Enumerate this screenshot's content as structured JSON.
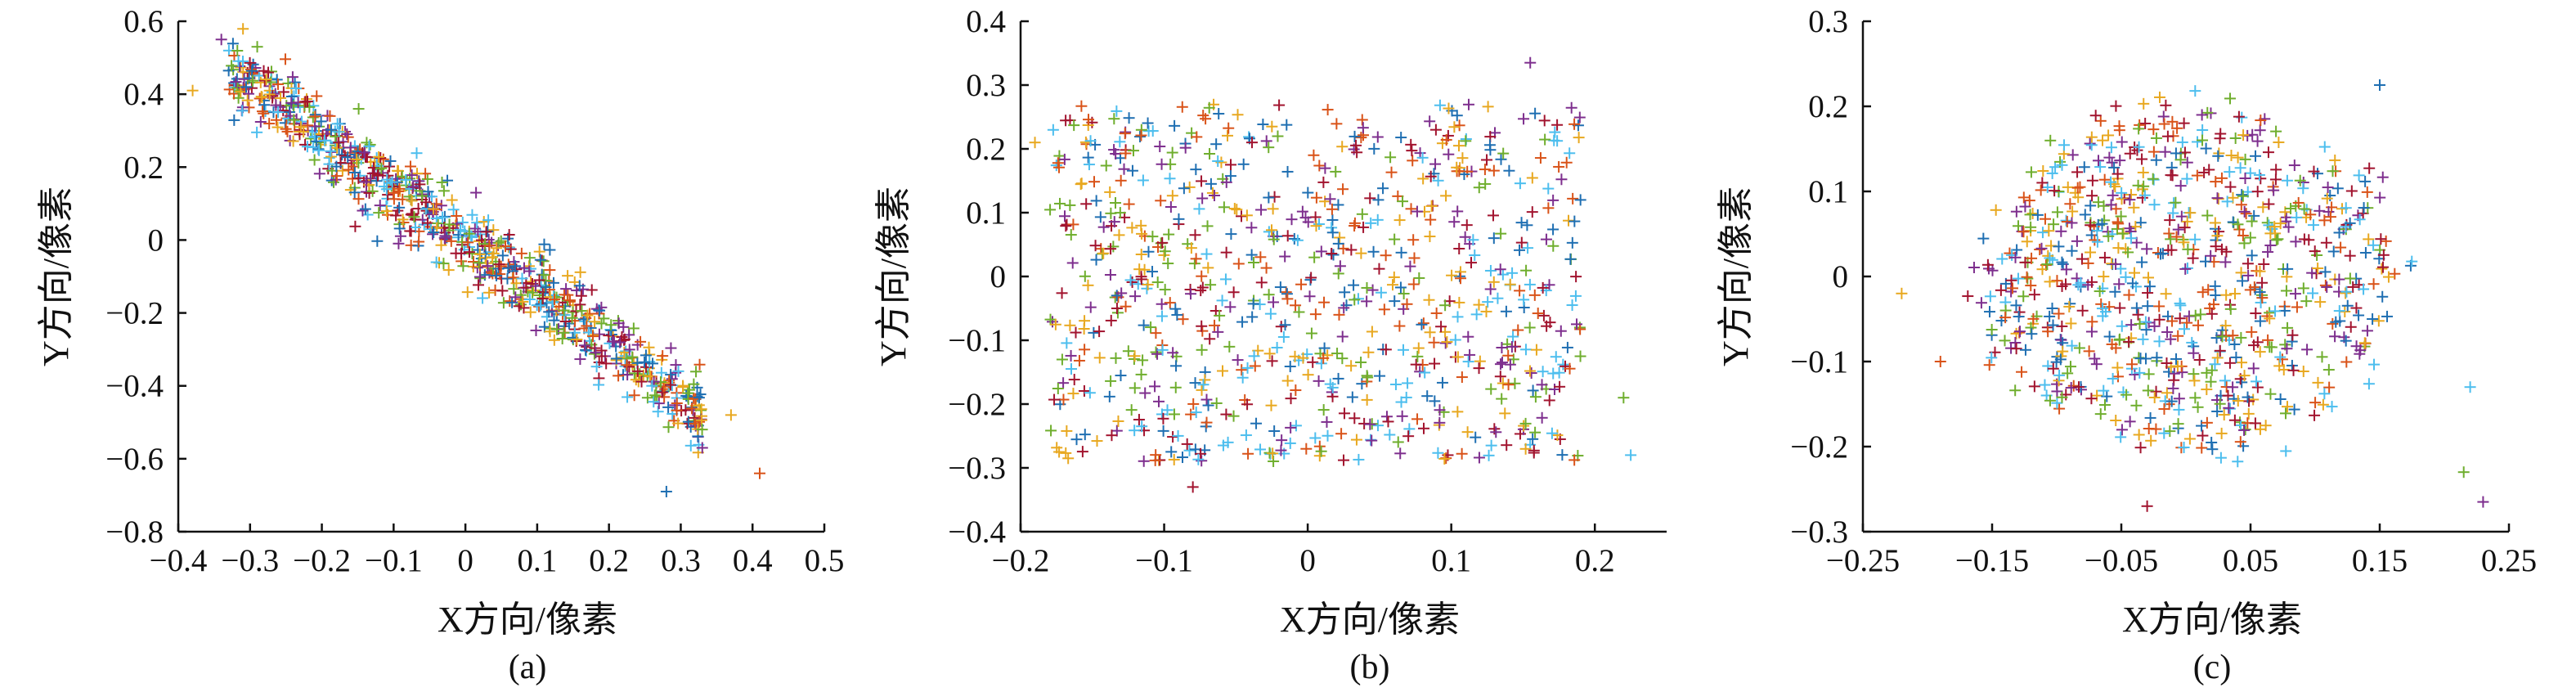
{
  "figure": {
    "panels": [
      {
        "id": "a",
        "label": "(a)",
        "xlabel": "X方向/像素",
        "ylabel": "Y方向/像素"
      },
      {
        "id": "b",
        "label": "(b)",
        "xlabel": "X方向/像素",
        "ylabel": "Y方向/像素"
      },
      {
        "id": "c",
        "label": "(c)",
        "xlabel": "X方向/像素",
        "ylabel": "Y方向/像素"
      }
    ]
  },
  "chart_data": [
    {
      "type": "scatter",
      "marker": "plus",
      "label": "(a)",
      "xlabel": "X方向/像素",
      "ylabel": "Y方向/像素",
      "xlim": [
        -0.4,
        0.5
      ],
      "ylim": [
        -0.8,
        0.6
      ],
      "xticks": [
        -0.4,
        -0.3,
        -0.2,
        -0.1,
        0,
        0.1,
        0.2,
        0.3,
        0.4,
        0.5
      ],
      "xtick_labels": [
        "−0.4",
        "−0.3",
        "−0.2",
        "−0.1",
        "0",
        "0.1",
        "0.2",
        "0.3",
        "0.4",
        "0.5"
      ],
      "yticks": [
        -0.8,
        -0.6,
        -0.4,
        -0.2,
        0,
        0.2,
        0.4,
        0.6
      ],
      "ytick_labels": [
        "−0.8",
        "−0.6",
        "−0.4",
        "−0.2",
        "0",
        "0.2",
        "0.4",
        "0.6"
      ],
      "grid": false,
      "colors": [
        "#1f6fb2",
        "#d95319",
        "#e8a820",
        "#7e2f8e",
        "#6fae2e",
        "#4dbeee",
        "#a2142f"
      ],
      "distribution": {
        "shape": "diagonal-band",
        "count": 800,
        "x_range": [
          -0.33,
          0.33
        ],
        "slope": -1.42,
        "spread": 0.055
      },
      "points": [
        {
          "x": -0.38,
          "y": 0.41
        },
        {
          "x": -0.34,
          "y": 0.55
        },
        {
          "x": -0.29,
          "y": 0.53
        },
        {
          "x": -0.31,
          "y": 0.49
        },
        {
          "x": -0.22,
          "y": 0.38
        },
        {
          "x": 0.28,
          "y": -0.69
        },
        {
          "x": 0.41,
          "y": -0.64
        },
        {
          "x": 0.37,
          "y": -0.48
        },
        {
          "x": 0.33,
          "y": -0.57
        },
        {
          "x": 0.31,
          "y": -0.42
        },
        {
          "x": 0.26,
          "y": -0.4
        },
        {
          "x": 0.24,
          "y": -0.36
        }
      ]
    },
    {
      "type": "scatter",
      "marker": "plus",
      "label": "(b)",
      "xlabel": "X方向/像素",
      "ylabel": "Y方向/像素",
      "xlim": [
        -0.2,
        0.25
      ],
      "ylim": [
        -0.4,
        0.4
      ],
      "xticks": [
        -0.2,
        -0.1,
        0,
        0.1,
        0.2
      ],
      "xtick_labels": [
        "−0.2",
        "−0.1",
        "0",
        "0.1",
        "0.2"
      ],
      "yticks": [
        -0.4,
        -0.3,
        -0.2,
        -0.1,
        0,
        0.1,
        0.2,
        0.3,
        0.4
      ],
      "ytick_labels": [
        "−0.4",
        "−0.3",
        "−0.2",
        "−0.1",
        "0",
        "0.1",
        "0.2",
        "0.3",
        "0.4"
      ],
      "grid": false,
      "colors": [
        "#1f6fb2",
        "#d95319",
        "#e8a820",
        "#7e2f8e",
        "#6fae2e",
        "#4dbeee",
        "#a2142f"
      ],
      "distribution": {
        "shape": "uniform-rectangle",
        "count": 800,
        "x_range": [
          -0.18,
          0.19
        ],
        "y_range": [
          -0.29,
          0.27
        ]
      },
      "points": [
        {
          "x": -0.19,
          "y": 0.21
        },
        {
          "x": 0.155,
          "y": 0.335
        },
        {
          "x": 0.22,
          "y": -0.19
        },
        {
          "x": 0.225,
          "y": -0.28
        },
        {
          "x": -0.08,
          "y": -0.33
        },
        {
          "x": 0.19,
          "y": 0.12
        }
      ]
    },
    {
      "type": "scatter",
      "marker": "plus",
      "label": "(c)",
      "xlabel": "X方向/像素",
      "ylabel": "Y方向/像素",
      "xlim": [
        -0.25,
        0.25
      ],
      "ylim": [
        -0.3,
        0.3
      ],
      "xticks": [
        -0.25,
        -0.15,
        -0.05,
        0.05,
        0.15,
        0.25
      ],
      "xtick_labels": [
        "−0.25",
        "−0.15",
        "−0.05",
        "0.05",
        "0.15",
        "0.25"
      ],
      "yticks": [
        -0.3,
        -0.2,
        -0.1,
        0,
        0.1,
        0.2,
        0.3
      ],
      "ytick_labels": [
        "−0.3",
        "−0.2",
        "−0.1",
        "0",
        "0.1",
        "0.2",
        "0.3"
      ],
      "grid": false,
      "colors": [
        "#1f6fb2",
        "#d95319",
        "#e8a820",
        "#7e2f8e",
        "#6fae2e",
        "#4dbeee",
        "#a2142f"
      ],
      "distribution": {
        "shape": "elliptical-cloud",
        "count": 800,
        "center": [
          0,
          0
        ],
        "radius_x": 0.16,
        "radius_y": 0.2
      },
      "points": [
        {
          "x": -0.22,
          "y": -0.02
        },
        {
          "x": 0.23,
          "y": -0.265
        },
        {
          "x": 0.215,
          "y": -0.23
        },
        {
          "x": 0.22,
          "y": -0.13
        },
        {
          "x": -0.03,
          "y": -0.27
        },
        {
          "x": 0.15,
          "y": 0.225
        },
        {
          "x": -0.19,
          "y": -0.1
        }
      ]
    }
  ]
}
